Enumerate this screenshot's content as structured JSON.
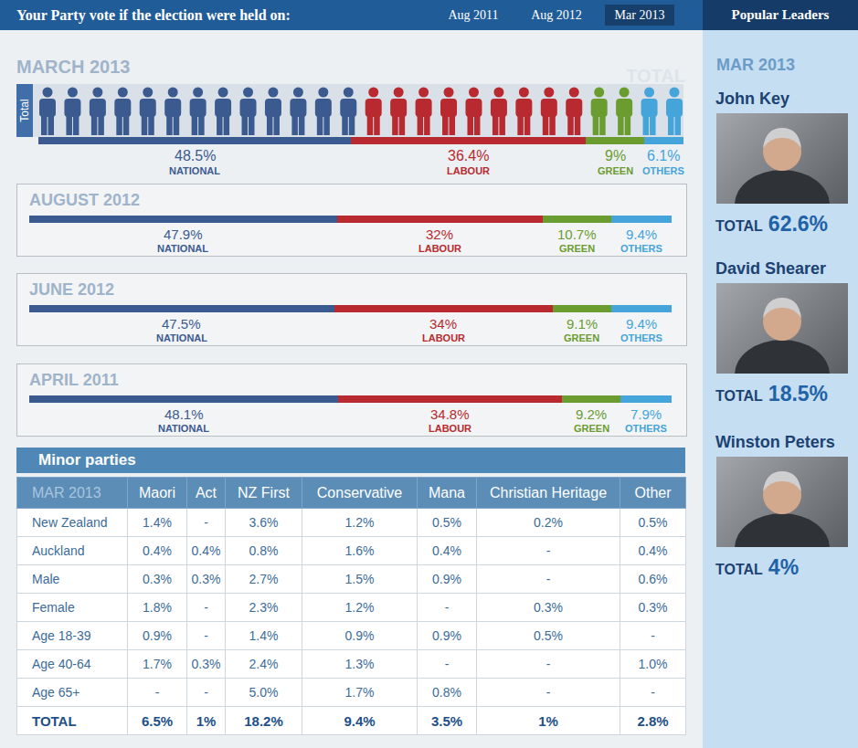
{
  "header": {
    "title": "Your Party vote if the election were held on:",
    "tabs": [
      "Aug 2011",
      "Aug 2012",
      "Mar 2013"
    ],
    "selected_tab": "Mar 2013"
  },
  "chart_data": [
    {
      "type": "bar",
      "title": "MARCH 2013",
      "corner_label": "TOTAL",
      "orientation": "horizontal",
      "stacked": true,
      "data_labels": true,
      "tick_labels": false,
      "grid": false,
      "xlim": [
        0,
        100
      ],
      "categories": [
        "Total"
      ],
      "series": [
        {
          "name": "NATIONAL",
          "color": "#3b5a8f",
          "values": [
            48.5
          ],
          "value_labels": [
            "48.5%"
          ],
          "icons": 13
        },
        {
          "name": "LABOUR",
          "color": "#b82a2f",
          "values": [
            36.4
          ],
          "value_labels": [
            "36.4%"
          ],
          "icons": 9
        },
        {
          "name": "GREEN",
          "color": "#6a9c30",
          "values": [
            9
          ],
          "value_labels": [
            "9%"
          ],
          "icons": 2
        },
        {
          "name": "OTHERS",
          "color": "#45a4da",
          "values": [
            6.1
          ],
          "value_labels": [
            "6.1%"
          ],
          "icons": 2
        }
      ]
    },
    {
      "type": "bar",
      "title": "AUGUST 2012",
      "orientation": "horizontal",
      "stacked": true,
      "data_labels": true,
      "tick_labels": false,
      "grid": false,
      "xlim": [
        0,
        100
      ],
      "categories": [
        null
      ],
      "series": [
        {
          "name": "NATIONAL",
          "color": "#3b5a8f",
          "values": [
            47.9
          ],
          "value_labels": [
            "47.9%"
          ]
        },
        {
          "name": "LABOUR",
          "color": "#b82a2f",
          "values": [
            32
          ],
          "value_labels": [
            "32%"
          ]
        },
        {
          "name": "GREEN",
          "color": "#6a9c30",
          "values": [
            10.7
          ],
          "value_labels": [
            "10.7%"
          ]
        },
        {
          "name": "OTHERS",
          "color": "#45a4da",
          "values": [
            9.4
          ],
          "value_labels": [
            "9.4%"
          ]
        }
      ]
    },
    {
      "type": "bar",
      "title": "JUNE 2012",
      "orientation": "horizontal",
      "stacked": true,
      "data_labels": true,
      "tick_labels": false,
      "grid": false,
      "xlim": [
        0,
        100
      ],
      "categories": [
        null
      ],
      "series": [
        {
          "name": "NATIONAL",
          "color": "#3b5a8f",
          "values": [
            47.5
          ],
          "value_labels": [
            "47.5%"
          ]
        },
        {
          "name": "LABOUR",
          "color": "#b82a2f",
          "values": [
            34
          ],
          "value_labels": [
            "34%"
          ]
        },
        {
          "name": "GREEN",
          "color": "#6a9c30",
          "values": [
            9.1
          ],
          "value_labels": [
            "9.1%"
          ]
        },
        {
          "name": "OTHERS",
          "color": "#45a4da",
          "values": [
            9.4
          ],
          "value_labels": [
            "9.4%"
          ]
        }
      ]
    },
    {
      "type": "bar",
      "title": "APRIL 2011",
      "orientation": "horizontal",
      "stacked": true,
      "data_labels": true,
      "tick_labels": false,
      "grid": false,
      "xlim": [
        0,
        100
      ],
      "categories": [
        null
      ],
      "series": [
        {
          "name": "NATIONAL",
          "color": "#3b5a8f",
          "values": [
            48.1
          ],
          "value_labels": [
            "48.1%"
          ]
        },
        {
          "name": "LABOUR",
          "color": "#b82a2f",
          "values": [
            34.8
          ],
          "value_labels": [
            "34.8%"
          ]
        },
        {
          "name": "GREEN",
          "color": "#6a9c30",
          "values": [
            9.2
          ],
          "value_labels": [
            "9.2%"
          ]
        },
        {
          "name": "OTHERS",
          "color": "#45a4da",
          "values": [
            7.9
          ],
          "value_labels": [
            "7.9%"
          ]
        }
      ]
    }
  ],
  "minor_parties": {
    "title": "Minor parties",
    "table": {
      "columns": [
        "MAR 2013",
        "Maori",
        "Act",
        "NZ First",
        "Conservative",
        "Mana",
        "Christian Heritage",
        "Other"
      ],
      "rows": [
        [
          "New Zealand",
          "1.4%",
          "-",
          "3.6%",
          "1.2%",
          "0.5%",
          "0.2%",
          "0.5%"
        ],
        [
          "Auckland",
          "0.4%",
          "0.4%",
          "0.8%",
          "1.6%",
          "0.4%",
          "-",
          "0.4%"
        ],
        [
          "Male",
          "0.3%",
          "0.3%",
          "2.7%",
          "1.5%",
          "0.9%",
          "-",
          "0.6%"
        ],
        [
          "Female",
          "1.8%",
          "-",
          "2.3%",
          "1.2%",
          "-",
          "0.3%",
          "0.3%"
        ],
        [
          "Age 18-39",
          "0.9%",
          "-",
          "1.4%",
          "0.9%",
          "0.9%",
          "0.5%",
          "-"
        ],
        [
          "Age 40-64",
          "1.7%",
          "0.3%",
          "2.4%",
          "1.3%",
          "-",
          "-",
          "1.0%"
        ],
        [
          "Age 65+",
          "-",
          "-",
          "5.0%",
          "1.7%",
          "0.8%",
          "-",
          "-"
        ],
        [
          "TOTAL",
          "6.5%",
          "1%",
          "18.2%",
          "9.4%",
          "3.5%",
          "1%",
          "2.8%"
        ]
      ]
    }
  },
  "leaders": {
    "title": "Popular Leaders",
    "period": "MAR 2013",
    "people": [
      {
        "name": "John Key",
        "label": "TOTAL",
        "value": "62.6%"
      },
      {
        "name": "David Shearer",
        "label": "TOTAL",
        "value": "18.5%"
      },
      {
        "name": "Winston Peters",
        "label": "TOTAL",
        "value": "4%"
      }
    ]
  }
}
